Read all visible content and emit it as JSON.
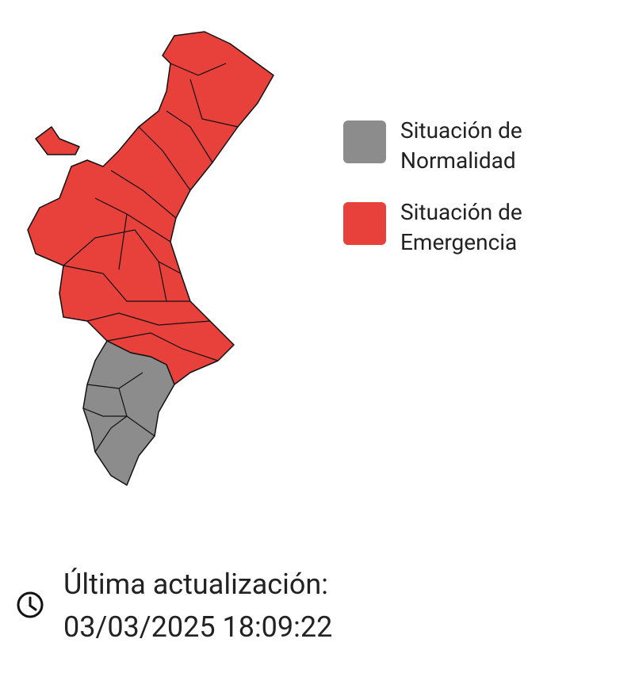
{
  "legend": [
    {
      "label": "Situación de Normalidad",
      "color": "#8c8c8c"
    },
    {
      "label": "Situación de Emergencia",
      "color": "#e8413c"
    }
  ],
  "update": {
    "label": "Última actualización:",
    "timestamp": "03/03/2025 18:09:22"
  }
}
